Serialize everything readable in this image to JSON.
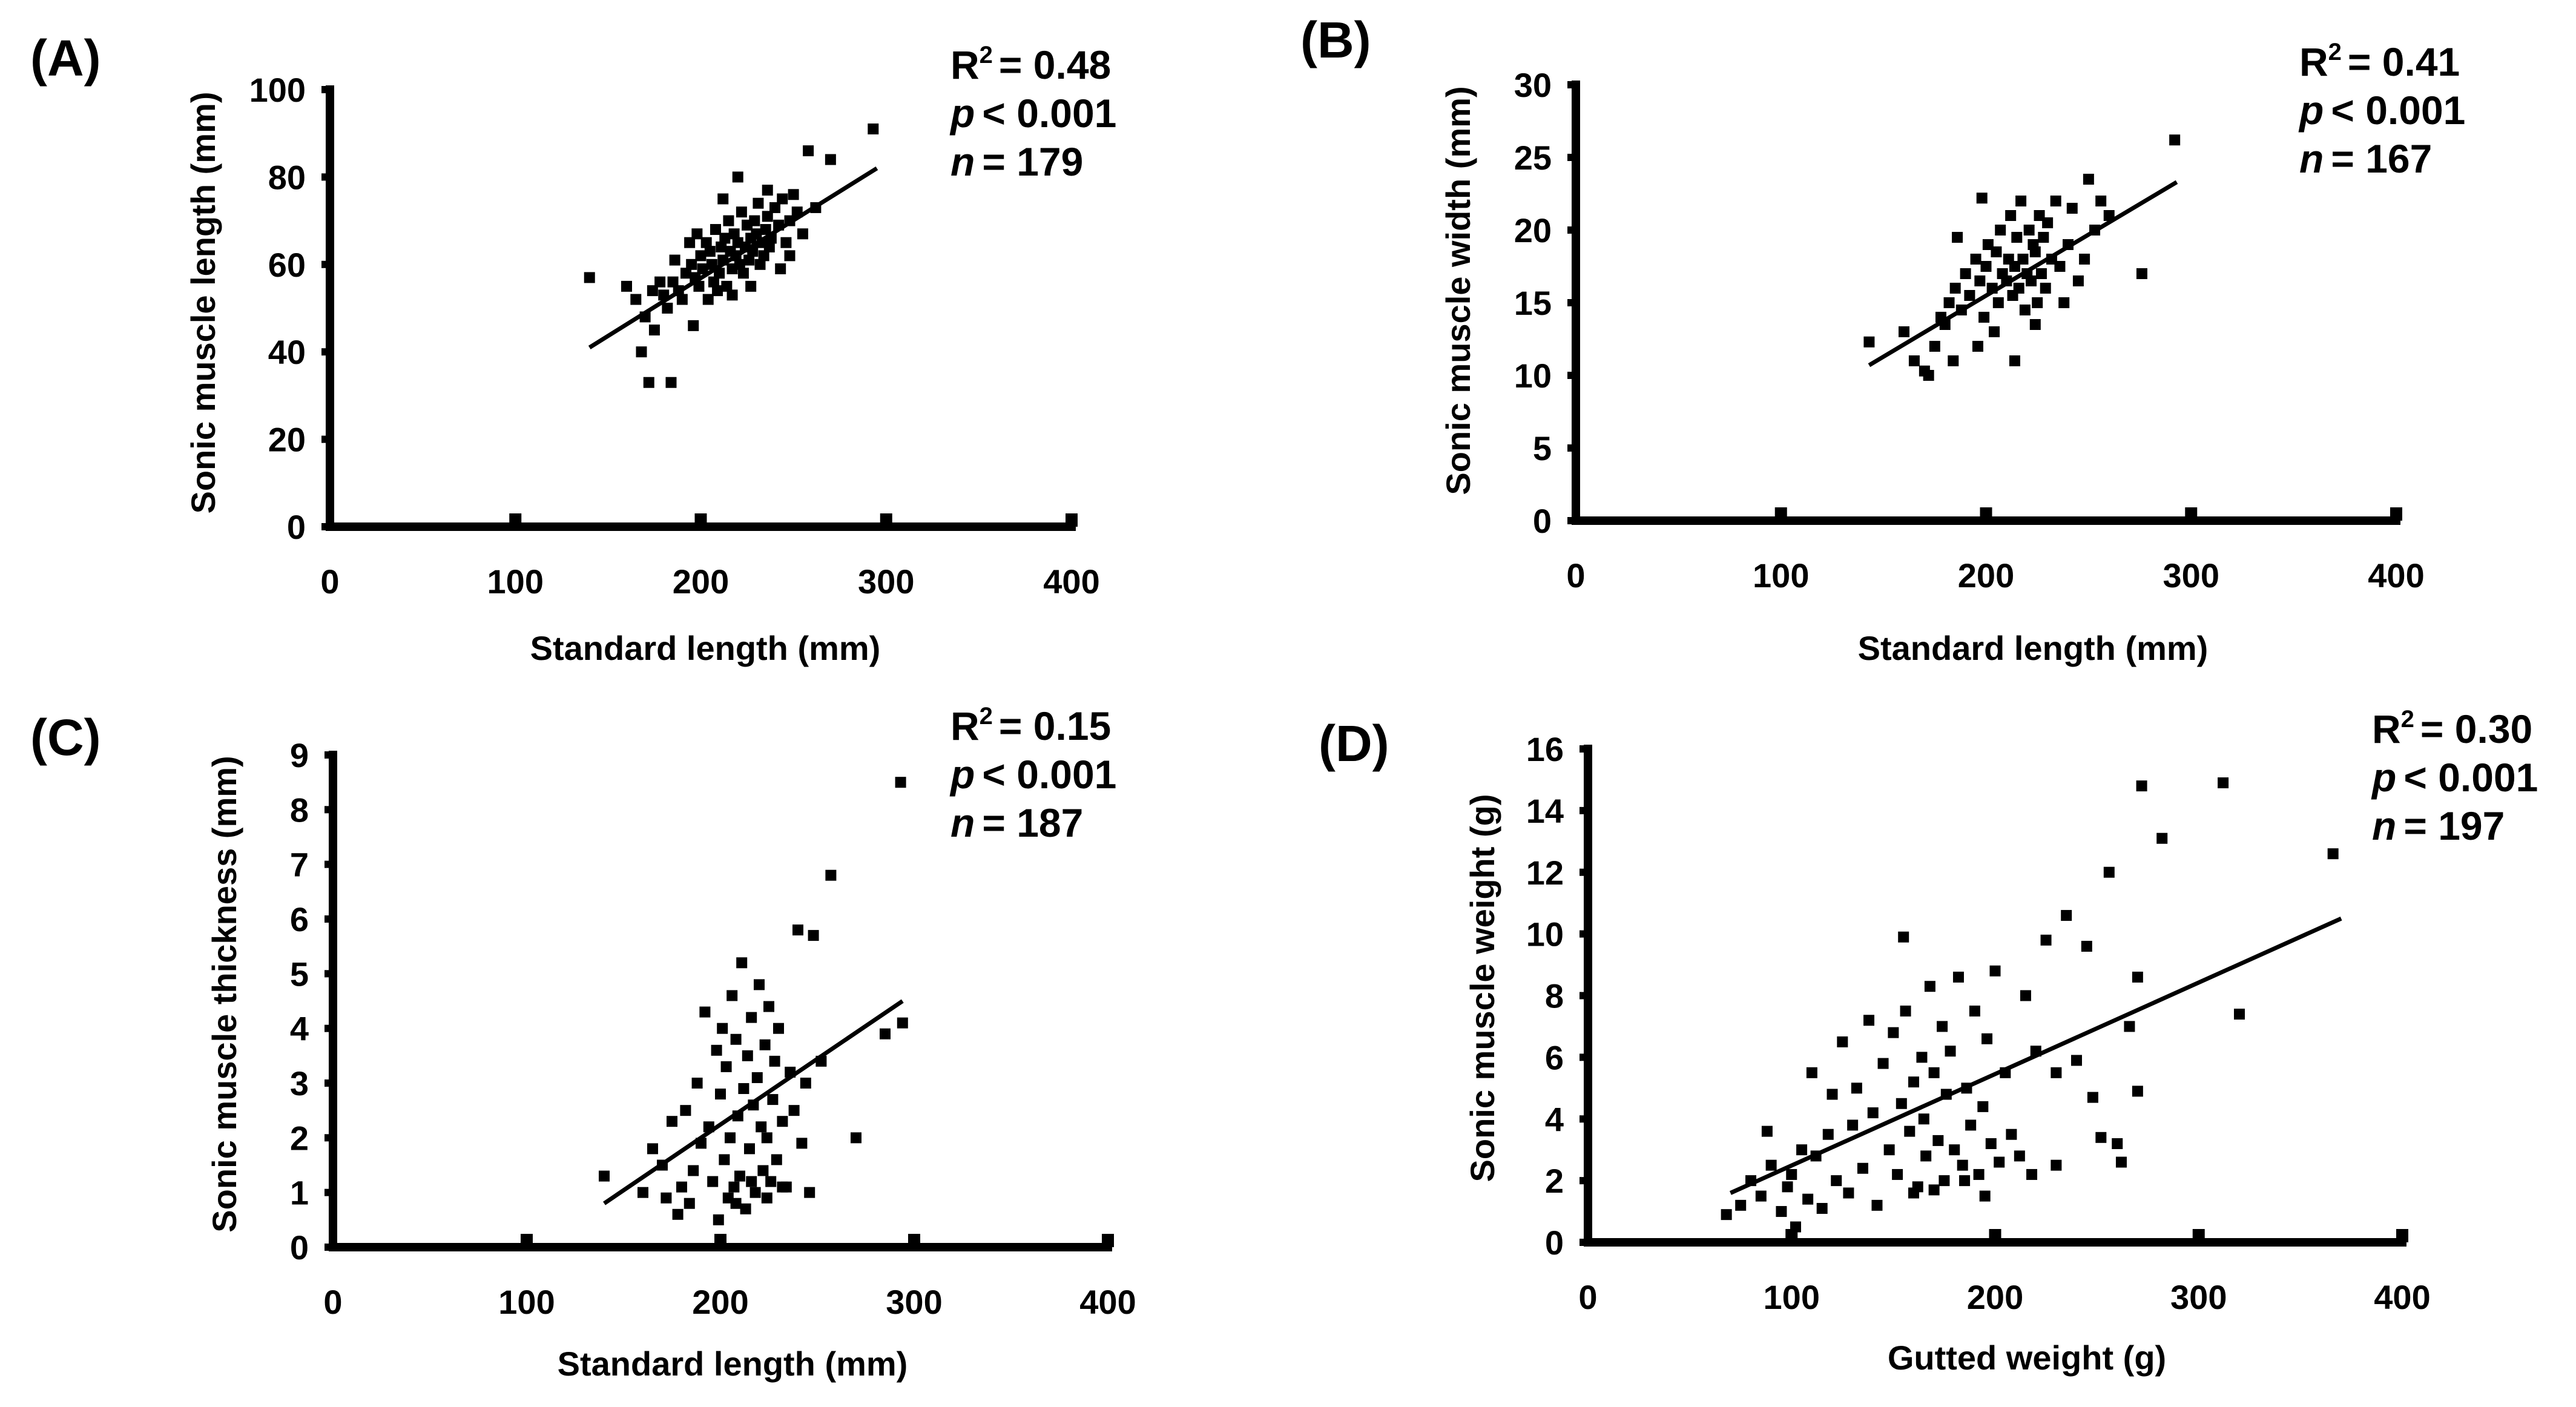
{
  "chart_data": [
    {
      "type": "scatter",
      "panel_label": "(A)",
      "xlabel": "Standard length (mm)",
      "ylabel": "Sonic muscle length (mm)",
      "xlim": [
        0,
        400
      ],
      "ylim": [
        0,
        100
      ],
      "xticks": [
        "0",
        "100",
        "200",
        "300",
        "400"
      ],
      "yticks": [
        "0",
        "20",
        "40",
        "60",
        "80",
        "100"
      ],
      "stats": {
        "r2_label": "R",
        "r2_sup": "2",
        "r2_value": "= 0.48",
        "p_symbol": "p",
        "p_value": "< 0.001",
        "n_symbol": "n",
        "n_value": "= 179"
      },
      "fit_line": {
        "x": [
          140,
          295
        ],
        "y": [
          41,
          82
        ]
      },
      "points": [
        [
          140,
          57
        ],
        [
          160,
          55
        ],
        [
          165,
          52
        ],
        [
          170,
          48
        ],
        [
          175,
          45
        ],
        [
          168,
          40
        ],
        [
          180,
          53
        ],
        [
          182,
          50
        ],
        [
          185,
          56
        ],
        [
          188,
          54
        ],
        [
          190,
          52
        ],
        [
          192,
          58
        ],
        [
          195,
          60
        ],
        [
          197,
          57
        ],
        [
          199,
          55
        ],
        [
          200,
          62
        ],
        [
          201,
          59
        ],
        [
          203,
          65
        ],
        [
          205,
          63
        ],
        [
          206,
          60
        ],
        [
          207,
          56
        ],
        [
          208,
          68
        ],
        [
          210,
          58
        ],
        [
          211,
          64
        ],
        [
          212,
          61
        ],
        [
          213,
          66
        ],
        [
          214,
          55
        ],
        [
          215,
          70
        ],
        [
          216,
          63
        ],
        [
          217,
          59
        ],
        [
          218,
          67
        ],
        [
          219,
          62
        ],
        [
          220,
          65
        ],
        [
          221,
          60
        ],
        [
          222,
          72
        ],
        [
          223,
          58
        ],
        [
          224,
          64
        ],
        [
          225,
          69
        ],
        [
          226,
          61
        ],
        [
          227,
          66
        ],
        [
          228,
          63
        ],
        [
          229,
          70
        ],
        [
          230,
          67
        ],
        [
          231,
          74
        ],
        [
          232,
          60
        ],
        [
          233,
          65
        ],
        [
          234,
          62
        ],
        [
          235,
          68
        ],
        [
          236,
          71
        ],
        [
          237,
          64
        ],
        [
          238,
          66
        ],
        [
          240,
          73
        ],
        [
          242,
          69
        ],
        [
          244,
          75
        ],
        [
          246,
          65
        ],
        [
          248,
          70
        ],
        [
          250,
          76
        ],
        [
          252,
          72
        ],
        [
          255,
          67
        ],
        [
          258,
          86
        ],
        [
          262,
          73
        ],
        [
          270,
          84
        ],
        [
          293,
          91
        ],
        [
          172,
          33
        ],
        [
          184,
          33
        ],
        [
          196,
          46
        ],
        [
          204,
          52
        ],
        [
          209,
          54
        ],
        [
          217,
          53
        ],
        [
          227,
          55
        ],
        [
          174,
          54
        ],
        [
          178,
          56
        ],
        [
          186,
          61
        ],
        [
          194,
          65
        ],
        [
          198,
          67
        ],
        [
          212,
          75
        ],
        [
          220,
          80
        ],
        [
          236,
          77
        ],
        [
          243,
          59
        ],
        [
          248,
          62
        ]
      ]
    },
    {
      "type": "scatter",
      "panel_label": "(B)",
      "xlabel": "Standard length (mm)",
      "ylabel": "Sonic muscle width (mm)",
      "xlim": [
        0,
        400
      ],
      "ylim": [
        0,
        30
      ],
      "xticks": [
        "0",
        "100",
        "200",
        "300",
        "400"
      ],
      "yticks": [
        "0",
        "5",
        "10",
        "15",
        "20",
        "25",
        "30"
      ],
      "stats": {
        "r2_label": "R",
        "r2_sup": "2",
        "r2_value": "= 0.41",
        "p_symbol": "p",
        "p_value": "< 0.001",
        "n_symbol": "n",
        "n_value": "= 167"
      },
      "fit_line": {
        "x": [
          143,
          293
        ],
        "y": [
          10.7,
          23.3
        ]
      },
      "points": [
        [
          143,
          12.3
        ],
        [
          160,
          13
        ],
        [
          165,
          11
        ],
        [
          170,
          10.3
        ],
        [
          175,
          12
        ],
        [
          178,
          14
        ],
        [
          180,
          13.5
        ],
        [
          182,
          15
        ],
        [
          185,
          16
        ],
        [
          188,
          14.5
        ],
        [
          190,
          17
        ],
        [
          192,
          15.5
        ],
        [
          195,
          18
        ],
        [
          197,
          16.5
        ],
        [
          199,
          14
        ],
        [
          200,
          17.5
        ],
        [
          201,
          19
        ],
        [
          203,
          16
        ],
        [
          205,
          18.5
        ],
        [
          206,
          15
        ],
        [
          207,
          20
        ],
        [
          208,
          17
        ],
        [
          210,
          16.5
        ],
        [
          211,
          18
        ],
        [
          212,
          21
        ],
        [
          213,
          15.5
        ],
        [
          214,
          17.5
        ],
        [
          215,
          19.5
        ],
        [
          216,
          16
        ],
        [
          217,
          22
        ],
        [
          218,
          18
        ],
        [
          219,
          14.5
        ],
        [
          220,
          17
        ],
        [
          221,
          20
        ],
        [
          222,
          16.5
        ],
        [
          223,
          19
        ],
        [
          224,
          18.5
        ],
        [
          225,
          15
        ],
        [
          226,
          21
        ],
        [
          227,
          17
        ],
        [
          228,
          19.5
        ],
        [
          229,
          16
        ],
        [
          230,
          20.5
        ],
        [
          232,
          18
        ],
        [
          234,
          22
        ],
        [
          236,
          17.5
        ],
        [
          238,
          15
        ],
        [
          240,
          19
        ],
        [
          242,
          21.5
        ],
        [
          245,
          16.5
        ],
        [
          248,
          18
        ],
        [
          250,
          23.5
        ],
        [
          253,
          20
        ],
        [
          256,
          22
        ],
        [
          260,
          21
        ],
        [
          276,
          17
        ],
        [
          292,
          26.2
        ],
        [
          172,
          10
        ],
        [
          184,
          11
        ],
        [
          196,
          12
        ],
        [
          204,
          13
        ],
        [
          214,
          11
        ],
        [
          224,
          13.5
        ],
        [
          186,
          19.5
        ],
        [
          198,
          22.2
        ]
      ]
    },
    {
      "type": "scatter",
      "panel_label": "(C)",
      "xlabel": "Standard length (mm)",
      "ylabel": "Sonic muscle thickness (mm)",
      "xlim": [
        0,
        400
      ],
      "ylim": [
        0,
        9
      ],
      "xticks": [
        "0",
        "100",
        "200",
        "300",
        "400"
      ],
      "yticks": [
        "0",
        "1",
        "2",
        "3",
        "4",
        "5",
        "6",
        "7",
        "8",
        "9"
      ],
      "stats": {
        "r2_label": "R",
        "r2_sup": "2",
        "r2_value": "= 0.15",
        "p_symbol": "p",
        "p_value": "< 0.001",
        "n_symbol": "n",
        "n_value": "= 187"
      },
      "fit_line": {
        "x": [
          140,
          294
        ],
        "y": [
          0.8,
          4.5
        ]
      },
      "points": [
        [
          140,
          1.3
        ],
        [
          160,
          1.0
        ],
        [
          165,
          1.8
        ],
        [
          170,
          1.5
        ],
        [
          172,
          0.9
        ],
        [
          175,
          2.3
        ],
        [
          178,
          0.6
        ],
        [
          180,
          1.1
        ],
        [
          182,
          2.5
        ],
        [
          184,
          0.8
        ],
        [
          186,
          1.4
        ],
        [
          188,
          3.0
        ],
        [
          190,
          1.9
        ],
        [
          192,
          4.3
        ],
        [
          194,
          2.2
        ],
        [
          196,
          1.2
        ],
        [
          198,
          3.6
        ],
        [
          199,
          0.5
        ],
        [
          200,
          2.8
        ],
        [
          201,
          4.0
        ],
        [
          202,
          1.6
        ],
        [
          203,
          3.3
        ],
        [
          204,
          0.9
        ],
        [
          205,
          2.0
        ],
        [
          206,
          4.6
        ],
        [
          207,
          1.1
        ],
        [
          208,
          3.8
        ],
        [
          209,
          2.4
        ],
        [
          210,
          1.3
        ],
        [
          211,
          5.2
        ],
        [
          212,
          2.9
        ],
        [
          213,
          0.7
        ],
        [
          214,
          3.5
        ],
        [
          215,
          1.8
        ],
        [
          216,
          4.2
        ],
        [
          217,
          2.6
        ],
        [
          218,
          1.0
        ],
        [
          219,
          3.1
        ],
        [
          220,
          4.8
        ],
        [
          221,
          2.2
        ],
        [
          222,
          1.4
        ],
        [
          223,
          3.7
        ],
        [
          224,
          2.0
        ],
        [
          225,
          4.4
        ],
        [
          226,
          1.2
        ],
        [
          227,
          2.7
        ],
        [
          228,
          3.4
        ],
        [
          229,
          1.6
        ],
        [
          230,
          4.0
        ],
        [
          232,
          2.3
        ],
        [
          234,
          1.1
        ],
        [
          236,
          3.2
        ],
        [
          238,
          2.5
        ],
        [
          240,
          5.8
        ],
        [
          242,
          1.9
        ],
        [
          244,
          3.0
        ],
        [
          248,
          5.7
        ],
        [
          252,
          3.4
        ],
        [
          257,
          6.8
        ],
        [
          270,
          2.0
        ],
        [
          285,
          3.9
        ],
        [
          293,
          8.5
        ],
        [
          294,
          4.1
        ],
        [
          208,
          0.8
        ],
        [
          216,
          1.2
        ],
        [
          224,
          0.9
        ],
        [
          232,
          1.1
        ],
        [
          246,
          1.0
        ]
      ]
    },
    {
      "type": "scatter",
      "panel_label": "(D)",
      "xlabel": "Gutted weight (g)",
      "ylabel": "Sonic muscle weight (g)",
      "xlim": [
        0,
        400
      ],
      "ylim": [
        0,
        16
      ],
      "xticks": [
        "0",
        "100",
        "200",
        "300",
        "400"
      ],
      "yticks": [
        "0",
        "2",
        "4",
        "6",
        "8",
        "10",
        "12",
        "14",
        "16"
      ],
      "stats": {
        "r2_label": "R",
        "r2_sup": "2",
        "r2_value": "= 0.30",
        "p_symbol": "p",
        "p_value": "< 0.001",
        "n_symbol": "n",
        "n_value": "= 197"
      },
      "fit_line": {
        "x": [
          70,
          370
        ],
        "y": [
          1.6,
          10.5
        ]
      },
      "points": [
        [
          68,
          0.9
        ],
        [
          75,
          1.2
        ],
        [
          80,
          2.0
        ],
        [
          85,
          1.5
        ],
        [
          88,
          3.6
        ],
        [
          90,
          2.5
        ],
        [
          95,
          1.0
        ],
        [
          98,
          1.8
        ],
        [
          100,
          2.2
        ],
        [
          102,
          0.5
        ],
        [
          105,
          3.0
        ],
        [
          108,
          1.4
        ],
        [
          110,
          5.5
        ],
        [
          112,
          2.8
        ],
        [
          115,
          1.1
        ],
        [
          118,
          3.5
        ],
        [
          120,
          4.8
        ],
        [
          122,
          2.0
        ],
        [
          125,
          6.5
        ],
        [
          128,
          1.6
        ],
        [
          130,
          3.8
        ],
        [
          132,
          5.0
        ],
        [
          135,
          2.4
        ],
        [
          138,
          7.2
        ],
        [
          140,
          4.2
        ],
        [
          142,
          1.2
        ],
        [
          145,
          5.8
        ],
        [
          148,
          3.0
        ],
        [
          150,
          6.8
        ],
        [
          152,
          2.2
        ],
        [
          154,
          4.5
        ],
        [
          155,
          9.9
        ],
        [
          156,
          7.5
        ],
        [
          158,
          3.6
        ],
        [
          160,
          5.2
        ],
        [
          162,
          1.8
        ],
        [
          164,
          6.0
        ],
        [
          165,
          4.0
        ],
        [
          166,
          2.8
        ],
        [
          168,
          8.3
        ],
        [
          170,
          5.5
        ],
        [
          172,
          3.3
        ],
        [
          174,
          7.0
        ],
        [
          175,
          2.0
        ],
        [
          176,
          4.8
        ],
        [
          178,
          6.2
        ],
        [
          180,
          3.0
        ],
        [
          182,
          8.6
        ],
        [
          184,
          2.5
        ],
        [
          186,
          5.0
        ],
        [
          188,
          3.8
        ],
        [
          190,
          7.5
        ],
        [
          192,
          2.2
        ],
        [
          194,
          4.4
        ],
        [
          196,
          6.6
        ],
        [
          198,
          3.2
        ],
        [
          200,
          8.8
        ],
        [
          202,
          2.6
        ],
        [
          205,
          5.5
        ],
        [
          208,
          3.5
        ],
        [
          212,
          2.8
        ],
        [
          215,
          8.0
        ],
        [
          220,
          6.2
        ],
        [
          225,
          9.8
        ],
        [
          230,
          5.5
        ],
        [
          235,
          10.6
        ],
        [
          240,
          5.9
        ],
        [
          245,
          9.6
        ],
        [
          252,
          3.4
        ],
        [
          256,
          12.0
        ],
        [
          262,
          2.6
        ],
        [
          266,
          7.0
        ],
        [
          270,
          8.6
        ],
        [
          272,
          14.8
        ],
        [
          282,
          13.1
        ],
        [
          312,
          14.9
        ],
        [
          320,
          7.4
        ],
        [
          366,
          12.6
        ],
        [
          270,
          4.9
        ],
        [
          260,
          3.2
        ],
        [
          248,
          4.7
        ],
        [
          230,
          2.5
        ],
        [
          218,
          2.2
        ],
        [
          195,
          1.5
        ],
        [
          185,
          2.0
        ],
        [
          170,
          1.7
        ],
        [
          160,
          1.6
        ]
      ]
    }
  ]
}
